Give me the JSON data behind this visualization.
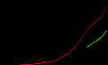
{
  "background_color": "#000000",
  "red_line": {
    "color": "#ff0000",
    "x": [
      1904,
      1910,
      1915,
      1920,
      1925,
      1930,
      1935,
      1940,
      1945,
      1950,
      1955,
      1960,
      1965,
      1970,
      1975,
      1980,
      1985,
      1990,
      1995,
      2000,
      2005,
      2010
    ],
    "y": [
      0.02,
      0.04,
      0.06,
      0.1,
      0.15,
      0.2,
      0.35,
      0.5,
      0.6,
      0.8,
      1.0,
      1.5,
      2.2,
      3.0,
      4.0,
      5.3,
      7.0,
      8.7,
      10.0,
      11.0,
      12.0,
      14.5
    ]
  },
  "green_line": {
    "color": "#00cc00",
    "x": [
      1990,
      1993,
      1996,
      1999,
      2002,
      2005,
      2008,
      2010
    ],
    "y": [
      4.5,
      5.0,
      5.5,
      6.0,
      6.5,
      7.0,
      7.8,
      8.5
    ]
  },
  "xlim": [
    1900,
    2012
  ],
  "ylim": [
    0,
    16
  ]
}
